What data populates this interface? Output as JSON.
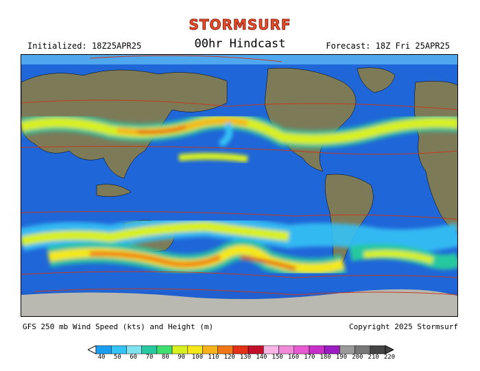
{
  "logo_text": "STORMSURF",
  "header": {
    "initialized": "Initialized: 18Z25APR25",
    "title": "00hr Hindcast",
    "forecast": "Forecast: 18Z Fri 25APR25"
  },
  "footer": {
    "description": "GFS 250 mb Wind Speed (kts) and Height (m)",
    "copyright": "Copyright 2025 Stormsurf"
  },
  "colors": {
    "ocean": "#1f66d8",
    "land": "#7d7a58",
    "ice": "#bdbdb4",
    "contour": "#c43a1e"
  },
  "legend": {
    "units": "kts",
    "levels": [
      "40",
      "50",
      "60",
      "70",
      "80",
      "90",
      "100",
      "110",
      "120",
      "130",
      "140",
      "150",
      "160",
      "170",
      "180",
      "190",
      "200",
      "210",
      "220"
    ],
    "colors": [
      "#1a9cf0",
      "#35c2f5",
      "#7fe4f0",
      "#28c8a0",
      "#3fe070",
      "#d8f020",
      "#f4e81a",
      "#f6b21b",
      "#f07818",
      "#e23218",
      "#c2102a",
      "#f7b6e6",
      "#f08ad8",
      "#e85ad2",
      "#c82ec8",
      "#9a1cc2",
      "#9a9a9a",
      "#777777",
      "#444444"
    ]
  }
}
